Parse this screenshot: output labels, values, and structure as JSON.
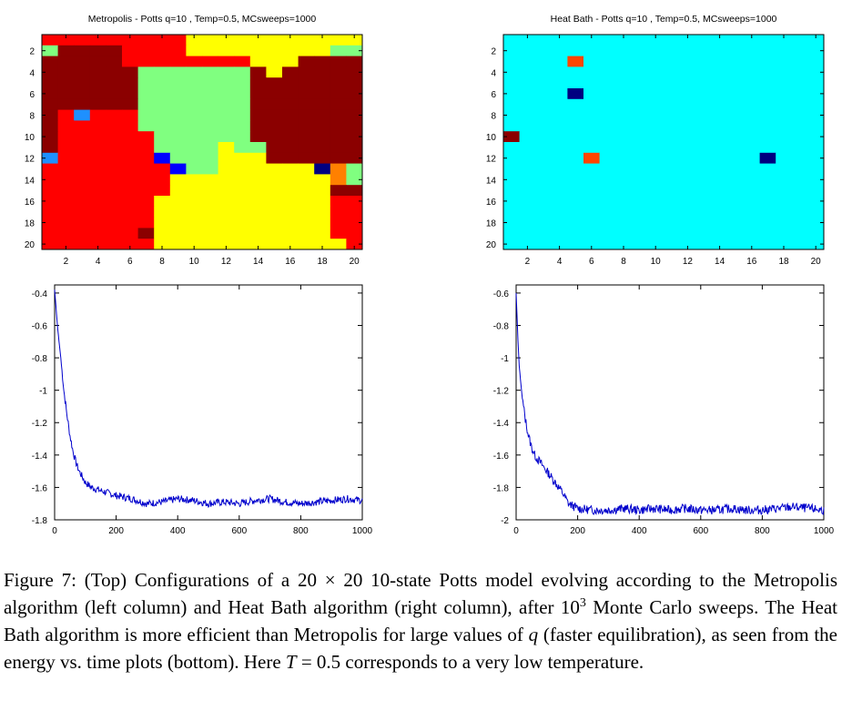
{
  "figure_label": "Figure 7:",
  "caption": {
    "p1": "(Top) Configurations of a 20 × 20 10-state Potts model evolving according to the Metropolis algorithm (left column) and Heat Bath algorithm (right column), after 10",
    "sup": "3",
    "p2": " Monte Carlo sweeps. The Heat Bath algorithm is more efficient than Metropolis for large values of ",
    "var_q": "q",
    "p3": " (faster equilibration), as seen from the energy vs. time plots (bottom). Here ",
    "var_T": "T",
    "p4": " = 0.5 corresponds to a very low temperature."
  },
  "colors": {
    "state_0": "#00ffff",
    "state_1": "#8b0000",
    "state_2": "#ff0000",
    "state_3": "#ffff00",
    "state_4": "#80ff80",
    "state_5": "#1e90ff",
    "state_6": "#0000ff",
    "state_7": "#000080",
    "state_8": "#ff8000",
    "state_9": "#ff4500",
    "line": "#0000cc"
  },
  "chart_data": [
    {
      "type": "heatmap",
      "title": "Metropolis - Potts q=10 , Temp=0.5, MCsweeps=1000",
      "x_ticks": [
        2,
        4,
        6,
        8,
        10,
        12,
        14,
        16,
        18,
        20
      ],
      "y_ticks": [
        2,
        4,
        6,
        8,
        10,
        12,
        14,
        16,
        18,
        20
      ],
      "grid": [
        [
          2,
          2,
          2,
          2,
          2,
          2,
          2,
          2,
          2,
          3,
          3,
          3,
          3,
          3,
          3,
          3,
          3,
          3,
          3,
          3
        ],
        [
          4,
          1,
          1,
          1,
          1,
          2,
          2,
          2,
          2,
          3,
          3,
          3,
          3,
          3,
          3,
          3,
          3,
          3,
          4,
          4
        ],
        [
          1,
          1,
          1,
          1,
          1,
          2,
          2,
          2,
          2,
          2,
          2,
          2,
          2,
          3,
          3,
          3,
          1,
          1,
          1,
          1
        ],
        [
          1,
          1,
          1,
          1,
          1,
          1,
          4,
          4,
          4,
          4,
          4,
          4,
          4,
          1,
          3,
          1,
          1,
          1,
          1,
          1
        ],
        [
          1,
          1,
          1,
          1,
          1,
          1,
          4,
          4,
          4,
          4,
          4,
          4,
          4,
          1,
          1,
          1,
          1,
          1,
          1,
          1
        ],
        [
          1,
          1,
          1,
          1,
          1,
          1,
          4,
          4,
          4,
          4,
          4,
          4,
          4,
          1,
          1,
          1,
          1,
          1,
          1,
          1
        ],
        [
          1,
          1,
          1,
          1,
          1,
          1,
          4,
          4,
          4,
          4,
          4,
          4,
          4,
          1,
          1,
          1,
          1,
          1,
          1,
          1
        ],
        [
          1,
          2,
          5,
          2,
          2,
          2,
          4,
          4,
          4,
          4,
          4,
          4,
          4,
          1,
          1,
          1,
          1,
          1,
          1,
          1
        ],
        [
          1,
          2,
          2,
          2,
          2,
          2,
          4,
          4,
          4,
          4,
          4,
          4,
          4,
          1,
          1,
          1,
          1,
          1,
          1,
          1
        ],
        [
          1,
          2,
          2,
          2,
          2,
          2,
          2,
          4,
          4,
          4,
          4,
          4,
          4,
          1,
          1,
          1,
          1,
          1,
          1,
          1
        ],
        [
          1,
          2,
          2,
          2,
          2,
          2,
          2,
          4,
          4,
          4,
          4,
          3,
          4,
          4,
          1,
          1,
          1,
          1,
          1,
          1
        ],
        [
          5,
          2,
          2,
          2,
          2,
          2,
          2,
          6,
          4,
          4,
          4,
          3,
          3,
          3,
          1,
          1,
          1,
          1,
          1,
          1
        ],
        [
          2,
          2,
          2,
          2,
          2,
          2,
          2,
          2,
          6,
          4,
          4,
          3,
          3,
          3,
          3,
          3,
          3,
          7,
          8,
          4
        ],
        [
          2,
          2,
          2,
          2,
          2,
          2,
          2,
          2,
          3,
          3,
          3,
          3,
          3,
          3,
          3,
          3,
          3,
          3,
          8,
          4
        ],
        [
          2,
          2,
          2,
          2,
          2,
          2,
          2,
          2,
          3,
          3,
          3,
          3,
          3,
          3,
          3,
          3,
          3,
          3,
          1,
          1
        ],
        [
          2,
          2,
          2,
          2,
          2,
          2,
          2,
          3,
          3,
          3,
          3,
          3,
          3,
          3,
          3,
          3,
          3,
          3,
          2,
          2
        ],
        [
          2,
          2,
          2,
          2,
          2,
          2,
          2,
          3,
          3,
          3,
          3,
          3,
          3,
          3,
          3,
          3,
          3,
          3,
          2,
          2
        ],
        [
          2,
          2,
          2,
          2,
          2,
          2,
          2,
          3,
          3,
          3,
          3,
          3,
          3,
          3,
          3,
          3,
          3,
          3,
          2,
          2
        ],
        [
          2,
          2,
          2,
          2,
          2,
          2,
          1,
          3,
          3,
          3,
          3,
          3,
          3,
          3,
          3,
          3,
          3,
          3,
          2,
          2
        ],
        [
          2,
          2,
          2,
          2,
          2,
          2,
          2,
          3,
          3,
          3,
          3,
          3,
          3,
          3,
          3,
          3,
          3,
          3,
          3,
          2
        ]
      ]
    },
    {
      "type": "heatmap",
      "title": "Heat Bath - Potts q=10 , Temp=0.5, MCsweeps=1000",
      "x_ticks": [
        2,
        4,
        6,
        8,
        10,
        12,
        14,
        16,
        18,
        20
      ],
      "y_ticks": [
        2,
        4,
        6,
        8,
        10,
        12,
        14,
        16,
        18,
        20
      ],
      "grid": [
        [
          0,
          0,
          0,
          0,
          0,
          0,
          0,
          0,
          0,
          0,
          0,
          0,
          0,
          0,
          0,
          0,
          0,
          0,
          0,
          0
        ],
        [
          0,
          0,
          0,
          0,
          0,
          0,
          0,
          0,
          0,
          0,
          0,
          0,
          0,
          0,
          0,
          0,
          0,
          0,
          0,
          0
        ],
        [
          0,
          0,
          0,
          0,
          9,
          0,
          0,
          0,
          0,
          0,
          0,
          0,
          0,
          0,
          0,
          0,
          0,
          0,
          0,
          0
        ],
        [
          0,
          0,
          0,
          0,
          0,
          0,
          0,
          0,
          0,
          0,
          0,
          0,
          0,
          0,
          0,
          0,
          0,
          0,
          0,
          0
        ],
        [
          0,
          0,
          0,
          0,
          0,
          0,
          0,
          0,
          0,
          0,
          0,
          0,
          0,
          0,
          0,
          0,
          0,
          0,
          0,
          0
        ],
        [
          0,
          0,
          0,
          0,
          7,
          0,
          0,
          0,
          0,
          0,
          0,
          0,
          0,
          0,
          0,
          0,
          0,
          0,
          0,
          0
        ],
        [
          0,
          0,
          0,
          0,
          0,
          0,
          0,
          0,
          0,
          0,
          0,
          0,
          0,
          0,
          0,
          0,
          0,
          0,
          0,
          0
        ],
        [
          0,
          0,
          0,
          0,
          0,
          0,
          0,
          0,
          0,
          0,
          0,
          0,
          0,
          0,
          0,
          0,
          0,
          0,
          0,
          0
        ],
        [
          0,
          0,
          0,
          0,
          0,
          0,
          0,
          0,
          0,
          0,
          0,
          0,
          0,
          0,
          0,
          0,
          0,
          0,
          0,
          0
        ],
        [
          1,
          0,
          0,
          0,
          0,
          0,
          0,
          0,
          0,
          0,
          0,
          0,
          0,
          0,
          0,
          0,
          0,
          0,
          0,
          0
        ],
        [
          0,
          0,
          0,
          0,
          0,
          0,
          0,
          0,
          0,
          0,
          0,
          0,
          0,
          0,
          0,
          0,
          0,
          0,
          0,
          0
        ],
        [
          0,
          0,
          0,
          0,
          0,
          9,
          0,
          0,
          0,
          0,
          0,
          0,
          0,
          0,
          0,
          0,
          7,
          0,
          0,
          0
        ],
        [
          0,
          0,
          0,
          0,
          0,
          0,
          0,
          0,
          0,
          0,
          0,
          0,
          0,
          0,
          0,
          0,
          0,
          0,
          0,
          0
        ],
        [
          0,
          0,
          0,
          0,
          0,
          0,
          0,
          0,
          0,
          0,
          0,
          0,
          0,
          0,
          0,
          0,
          0,
          0,
          0,
          0
        ],
        [
          0,
          0,
          0,
          0,
          0,
          0,
          0,
          0,
          0,
          0,
          0,
          0,
          0,
          0,
          0,
          0,
          0,
          0,
          0,
          0
        ],
        [
          0,
          0,
          0,
          0,
          0,
          0,
          0,
          0,
          0,
          0,
          0,
          0,
          0,
          0,
          0,
          0,
          0,
          0,
          0,
          0
        ],
        [
          0,
          0,
          0,
          0,
          0,
          0,
          0,
          0,
          0,
          0,
          0,
          0,
          0,
          0,
          0,
          0,
          0,
          0,
          0,
          0
        ],
        [
          0,
          0,
          0,
          0,
          0,
          0,
          0,
          0,
          0,
          0,
          0,
          0,
          0,
          0,
          0,
          0,
          0,
          0,
          0,
          0
        ],
        [
          0,
          0,
          0,
          0,
          0,
          0,
          0,
          0,
          0,
          0,
          0,
          0,
          0,
          0,
          0,
          0,
          0,
          0,
          0,
          0
        ],
        [
          0,
          0,
          0,
          0,
          0,
          0,
          0,
          0,
          0,
          0,
          0,
          0,
          0,
          0,
          0,
          0,
          0,
          0,
          0,
          0
        ]
      ]
    },
    {
      "type": "line",
      "title": "",
      "xlim": [
        0,
        1000
      ],
      "ylim": [
        -1.8,
        -0.35
      ],
      "x_ticks": [
        0,
        200,
        400,
        600,
        800,
        1000
      ],
      "y_ticks": [
        -0.4,
        -0.6,
        -0.8,
        -1,
        -1.2,
        -1.4,
        -1.6,
        -1.8
      ],
      "x_tick_labels": [
        "0",
        "200",
        "400",
        "600",
        "800",
        "1000"
      ],
      "y_tick_labels": [
        "-0.4",
        "-0.6",
        "-0.8",
        "-1",
        "-1.2",
        "-1.4",
        "-1.6",
        "-1.8"
      ],
      "series": [
        {
          "x": [
            0,
            5,
            10,
            20,
            30,
            40,
            50,
            60,
            70,
            80,
            100,
            120,
            150,
            200,
            250,
            300,
            350,
            400,
            450,
            500,
            550,
            600,
            650,
            700,
            750,
            800,
            850,
            900,
            950,
            1000
          ],
          "y": [
            -0.38,
            -0.5,
            -0.62,
            -0.8,
            -1.0,
            -1.15,
            -1.28,
            -1.38,
            -1.45,
            -1.5,
            -1.57,
            -1.6,
            -1.62,
            -1.65,
            -1.67,
            -1.7,
            -1.69,
            -1.67,
            -1.68,
            -1.7,
            -1.69,
            -1.7,
            -1.68,
            -1.67,
            -1.69,
            -1.7,
            -1.69,
            -1.68,
            -1.67,
            -1.68
          ]
        }
      ]
    },
    {
      "type": "line",
      "title": "",
      "xlim": [
        0,
        1000
      ],
      "ylim": [
        -2.0,
        -0.55
      ],
      "x_ticks": [
        0,
        200,
        400,
        600,
        800,
        1000
      ],
      "y_ticks": [
        -0.6,
        -0.8,
        -1,
        -1.2,
        -1.4,
        -1.6,
        -1.8,
        -2
      ],
      "x_tick_labels": [
        "0",
        "200",
        "400",
        "600",
        "800",
        "1000"
      ],
      "y_tick_labels": [
        "-0.6",
        "-0.8",
        "-1",
        "-1.2",
        "-1.4",
        "-1.6",
        "-1.8",
        "-2"
      ],
      "series": [
        {
          "x": [
            0,
            5,
            10,
            20,
            30,
            40,
            50,
            60,
            80,
            100,
            120,
            150,
            170,
            200,
            250,
            300,
            350,
            400,
            450,
            500,
            550,
            600,
            650,
            700,
            750,
            800,
            850,
            900,
            950,
            1000
          ],
          "y": [
            -0.6,
            -0.85,
            -1.05,
            -1.25,
            -1.38,
            -1.48,
            -1.55,
            -1.6,
            -1.65,
            -1.7,
            -1.75,
            -1.83,
            -1.9,
            -1.93,
            -1.94,
            -1.94,
            -1.93,
            -1.94,
            -1.93,
            -1.94,
            -1.93,
            -1.94,
            -1.94,
            -1.93,
            -1.94,
            -1.94,
            -1.93,
            -1.92,
            -1.93,
            -1.94
          ]
        }
      ]
    }
  ]
}
